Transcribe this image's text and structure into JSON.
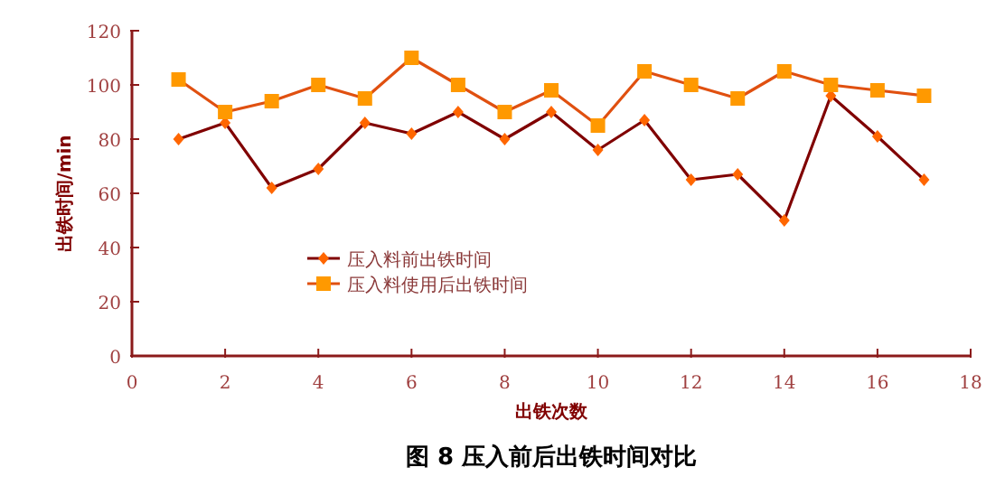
{
  "chart_data": {
    "type": "line",
    "title": "图 8  压入前后出铁时间对比",
    "xlabel": "出铁次数",
    "ylabel": "出铁时间/min",
    "x": [
      1,
      2,
      3,
      4,
      5,
      6,
      7,
      8,
      9,
      10,
      11,
      12,
      13,
      14,
      15,
      16,
      17
    ],
    "series": [
      {
        "name": "压入料前出铁时间",
        "color": "#800000",
        "marker": "diamond",
        "values": [
          80,
          86,
          62,
          69,
          86,
          82,
          90,
          80,
          90,
          76,
          87,
          65,
          67,
          50,
          96,
          81,
          65
        ]
      },
      {
        "name": "压入料使用后出铁时间",
        "color": "#e05010",
        "marker": "square",
        "values": [
          102,
          90,
          94,
          100,
          95,
          110,
          100,
          90,
          98,
          85,
          105,
          100,
          95,
          105,
          100,
          98,
          96
        ]
      }
    ],
    "xlim": [
      0,
      18
    ],
    "xticks": [
      0,
      2,
      4,
      6,
      8,
      10,
      12,
      14,
      16,
      18
    ],
    "ylim": [
      0,
      120
    ],
    "yticks": [
      0,
      20,
      40,
      60,
      80,
      100,
      120
    ],
    "grid": false,
    "legend": "bottom left",
    "line_style": "solid"
  }
}
